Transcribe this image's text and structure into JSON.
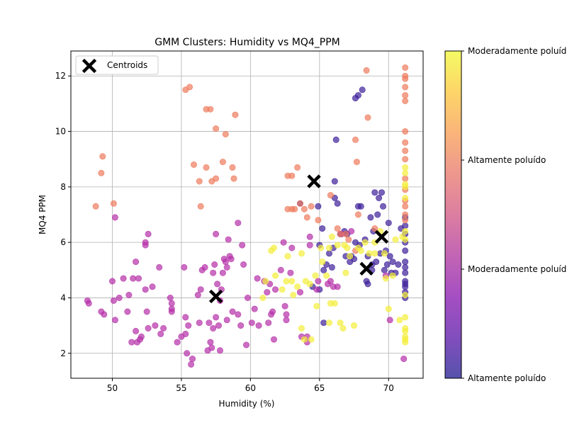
{
  "chart_data": {
    "type": "scatter",
    "title": "GMM Clusters: Humidity vs MQ4_PPM",
    "xlabel": "Humidity (%)",
    "ylabel": "MQ4 PPM",
    "xlim": [
      47,
      72.5
    ],
    "ylim": [
      1.1,
      12.9
    ],
    "xticks": [
      50,
      55,
      60,
      65,
      70
    ],
    "yticks": [
      2,
      4,
      6,
      8,
      10,
      12
    ],
    "grid": true,
    "legend": {
      "position": "top-left",
      "entries": [
        {
          "label": "Centroids",
          "marker": "x-icon"
        }
      ]
    },
    "colorbar": {
      "position": "right",
      "colormap": "plasma",
      "labels": [
        "Altamente poluído",
        "Moderadamente poluído",
        "Altamente poluído",
        "Moderadamente poluído"
      ]
    },
    "marker_alpha": 0.7,
    "centroids": [
      {
        "x": 57.5,
        "y": 4.05
      },
      {
        "x": 64.6,
        "y": 8.2
      },
      {
        "x": 68.4,
        "y": 5.05
      },
      {
        "x": 69.5,
        "y": 6.2
      }
    ],
    "series": [
      {
        "cluster": 0,
        "color": "#3d1f9a",
        "points": [
          [
            71.2,
            4.0
          ],
          [
            71.2,
            4.2
          ],
          [
            71.2,
            4.4
          ],
          [
            71.2,
            4.6
          ],
          [
            71.2,
            4.9
          ],
          [
            71.2,
            5.3
          ],
          [
            71.2,
            5.7
          ],
          [
            71.2,
            6.0
          ],
          [
            71.2,
            6.3
          ],
          [
            71.2,
            6.6
          ],
          [
            71.2,
            6.9
          ],
          [
            71.2,
            5.1
          ],
          [
            71.2,
            4.5
          ],
          [
            70.9,
            6.5
          ],
          [
            70.7,
            5.2
          ],
          [
            70.5,
            4.9
          ],
          [
            70.3,
            5.3
          ],
          [
            70.2,
            4.9
          ],
          [
            70.1,
            5.5
          ],
          [
            70.0,
            6.7
          ],
          [
            69.9,
            5.2
          ],
          [
            69.8,
            5.7
          ],
          [
            69.7,
            5.0
          ],
          [
            69.6,
            7.3
          ],
          [
            69.5,
            7.8
          ],
          [
            69.4,
            5.6
          ],
          [
            69.3,
            7.6
          ],
          [
            69.2,
            7.0
          ],
          [
            69.1,
            5.3
          ],
          [
            69.0,
            7.8
          ],
          [
            68.9,
            6.4
          ],
          [
            68.8,
            5.2
          ],
          [
            68.7,
            6.9
          ],
          [
            68.5,
            5.5
          ],
          [
            68.5,
            4.5
          ],
          [
            68.4,
            4.6
          ],
          [
            68.3,
            6.1
          ],
          [
            68.1,
            11.5
          ],
          [
            67.8,
            11.3
          ],
          [
            67.6,
            11.2
          ],
          [
            68.0,
            7.3
          ],
          [
            67.8,
            7.3
          ],
          [
            67.6,
            6.0
          ],
          [
            67.5,
            5.4
          ],
          [
            67.3,
            5.5
          ],
          [
            67.2,
            5.3
          ],
          [
            67.0,
            6.3
          ],
          [
            66.9,
            5.5
          ],
          [
            66.8,
            6.4
          ],
          [
            66.5,
            6.3
          ],
          [
            66.3,
            7.4
          ],
          [
            66.1,
            7.6
          ],
          [
            66.1,
            8.2
          ],
          [
            66.2,
            9.7
          ],
          [
            66.0,
            5.8
          ],
          [
            65.9,
            5.1
          ],
          [
            65.7,
            5.6
          ],
          [
            65.5,
            5.2
          ],
          [
            65.3,
            5.0
          ],
          [
            65.2,
            6.5
          ],
          [
            65.0,
            5.9
          ],
          [
            65.0,
            4.3
          ],
          [
            64.5,
            4.4
          ],
          [
            64.9,
            7.3
          ],
          [
            63.6,
            7.4
          ],
          [
            65.3,
            3.1
          ],
          [
            67.9,
            5.9
          ],
          [
            68.8,
            5.0
          ]
        ]
      },
      {
        "cluster": 1,
        "color": "#b52fa8",
        "points": [
          [
            48.2,
            3.9
          ],
          [
            48.3,
            3.8
          ],
          [
            49.2,
            3.5
          ],
          [
            49.4,
            3.4
          ],
          [
            50.0,
            4.6
          ],
          [
            50.1,
            3.9
          ],
          [
            50.2,
            3.2
          ],
          [
            50.2,
            6.9
          ],
          [
            50.5,
            4.0
          ],
          [
            50.8,
            4.7
          ],
          [
            51.1,
            3.5
          ],
          [
            51.2,
            4.1
          ],
          [
            51.4,
            2.4
          ],
          [
            51.5,
            4.7
          ],
          [
            51.7,
            5.3
          ],
          [
            51.7,
            2.8
          ],
          [
            51.8,
            2.4
          ],
          [
            51.9,
            4.7
          ],
          [
            52.0,
            2.5
          ],
          [
            52.1,
            2.6
          ],
          [
            52.4,
            4.3
          ],
          [
            52.4,
            5.9
          ],
          [
            52.4,
            6.0
          ],
          [
            52.6,
            6.3
          ],
          [
            52.5,
            3.5
          ],
          [
            52.6,
            2.9
          ],
          [
            52.9,
            4.4
          ],
          [
            53.1,
            3.0
          ],
          [
            53.4,
            5.1
          ],
          [
            53.5,
            2.7
          ],
          [
            53.7,
            2.9
          ],
          [
            54.2,
            4.0
          ],
          [
            54.3,
            3.8
          ],
          [
            54.3,
            3.6
          ],
          [
            54.3,
            3.5
          ],
          [
            54.7,
            2.4
          ],
          [
            55.0,
            2.6
          ],
          [
            55.2,
            5.1
          ],
          [
            55.3,
            3.3
          ],
          [
            55.3,
            2.7
          ],
          [
            55.4,
            2.0
          ],
          [
            55.5,
            3.0
          ],
          [
            55.7,
            1.6
          ],
          [
            55.8,
            1.8
          ],
          [
            56.2,
            4.1
          ],
          [
            56.3,
            3.1
          ],
          [
            56.4,
            4.3
          ],
          [
            56.5,
            5.0
          ],
          [
            56.7,
            5.1
          ],
          [
            56.9,
            2.1
          ],
          [
            57.0,
            3.1
          ],
          [
            57.1,
            2.4
          ],
          [
            57.2,
            2.2
          ],
          [
            57.3,
            2.9
          ],
          [
            57.3,
            4.9
          ],
          [
            57.4,
            5.2
          ],
          [
            57.5,
            6.3
          ],
          [
            57.5,
            3.3
          ],
          [
            57.6,
            4.5
          ],
          [
            57.7,
            3.0
          ],
          [
            57.8,
            2.1
          ],
          [
            57.8,
            3.9
          ],
          [
            57.9,
            4.3
          ],
          [
            58.0,
            4.9
          ],
          [
            58.1,
            5.4
          ],
          [
            58.2,
            5.3
          ],
          [
            58.3,
            5.1
          ],
          [
            58.3,
            3.2
          ],
          [
            58.4,
            6.1
          ],
          [
            58.5,
            5.5
          ],
          [
            58.6,
            5.4
          ],
          [
            58.7,
            3.5
          ],
          [
            59.1,
            6.7
          ],
          [
            59.1,
            3.4
          ],
          [
            59.3,
            3.0
          ],
          [
            59.4,
            5.9
          ],
          [
            59.5,
            5.2
          ],
          [
            59.7,
            2.3
          ],
          [
            59.8,
            4.0
          ],
          [
            60.1,
            3.1
          ],
          [
            60.3,
            3.6
          ],
          [
            60.5,
            4.7
          ],
          [
            60.6,
            3.0
          ],
          [
            61.0,
            4.6
          ],
          [
            61.2,
            4.2
          ],
          [
            61.3,
            3.1
          ],
          [
            61.4,
            4.5
          ],
          [
            61.5,
            3.4
          ],
          [
            61.6,
            3.5
          ],
          [
            61.7,
            2.5
          ],
          [
            61.8,
            4.3
          ],
          [
            62.2,
            5.0
          ],
          [
            62.4,
            6.0
          ],
          [
            62.5,
            3.7
          ],
          [
            62.6,
            3.2
          ],
          [
            62.6,
            3.4
          ],
          [
            62.9,
            4.9
          ],
          [
            63.0,
            5.8
          ],
          [
            63.6,
            4.2
          ],
          [
            63.7,
            2.6
          ],
          [
            64.1,
            2.4
          ],
          [
            64.1,
            2.6
          ],
          [
            64.3,
            5.9
          ],
          [
            64.3,
            6.2
          ],
          [
            64.8,
            4.3
          ],
          [
            64.9,
            4.6
          ],
          [
            65.6,
            4.5
          ],
          [
            65.8,
            4.6
          ],
          [
            66.0,
            4.4
          ],
          [
            66.3,
            4.4
          ],
          [
            66.6,
            6.3
          ],
          [
            67.3,
            6.4
          ],
          [
            69.8,
            4.8
          ],
          [
            70.1,
            3.2
          ],
          [
            71.1,
            1.8
          ]
        ]
      },
      {
        "cluster": 2,
        "color": "#ee7b5c",
        "points": [
          [
            48.8,
            7.3
          ],
          [
            49.2,
            8.5
          ],
          [
            49.3,
            9.1
          ],
          [
            50.1,
            7.4
          ],
          [
            55.3,
            11.5
          ],
          [
            55.6,
            11.6
          ],
          [
            55.9,
            8.8
          ],
          [
            56.3,
            8.2
          ],
          [
            56.4,
            7.3
          ],
          [
            56.8,
            10.8
          ],
          [
            56.8,
            8.7
          ],
          [
            57.1,
            10.8
          ],
          [
            57.2,
            8.2
          ],
          [
            57.5,
            10.1
          ],
          [
            57.5,
            8.3
          ],
          [
            58.0,
            8.9
          ],
          [
            58.2,
            9.9
          ],
          [
            58.7,
            8.7
          ],
          [
            58.8,
            8.3
          ],
          [
            58.9,
            10.6
          ],
          [
            62.7,
            7.2
          ],
          [
            62.7,
            8.4
          ],
          [
            63.0,
            8.4
          ],
          [
            63.0,
            7.2
          ],
          [
            63.2,
            7.2
          ],
          [
            63.4,
            8.7
          ],
          [
            63.6,
            7.4
          ],
          [
            63.9,
            7.2
          ],
          [
            64.1,
            6.9
          ],
          [
            64.4,
            7.3
          ],
          [
            64.9,
            6.8
          ],
          [
            65.8,
            7.7
          ],
          [
            66.3,
            6.5
          ],
          [
            66.5,
            6.3
          ],
          [
            66.9,
            6.3
          ],
          [
            67.1,
            6.1
          ],
          [
            67.6,
            9.7
          ],
          [
            67.7,
            8.9
          ],
          [
            67.8,
            7.0
          ],
          [
            67.6,
            5.7
          ],
          [
            68.4,
            12.2
          ],
          [
            68.5,
            10.5
          ],
          [
            69.0,
            6.5
          ],
          [
            71.2,
            12.3
          ],
          [
            71.2,
            12.0
          ],
          [
            71.2,
            11.9
          ],
          [
            71.2,
            11.6
          ],
          [
            71.2,
            11.3
          ],
          [
            71.2,
            11.1
          ],
          [
            71.2,
            10.0
          ],
          [
            71.2,
            9.6
          ],
          [
            71.2,
            9.3
          ],
          [
            71.2,
            9.0
          ],
          [
            71.2,
            8.3
          ],
          [
            71.2,
            7.9
          ],
          [
            71.2,
            7.5
          ],
          [
            71.2,
            7.3
          ],
          [
            71.2,
            7.0
          ],
          [
            71.2,
            6.8
          ]
        ]
      },
      {
        "cluster": 3,
        "color": "#f4ee3a",
        "points": [
          [
            60.9,
            4.0
          ],
          [
            61.1,
            4.6
          ],
          [
            61.5,
            5.7
          ],
          [
            61.7,
            5.8
          ],
          [
            61.8,
            4.8
          ],
          [
            62.3,
            4.3
          ],
          [
            62.6,
            4.6
          ],
          [
            62.7,
            5.5
          ],
          [
            63.0,
            4.6
          ],
          [
            63.1,
            4.1
          ],
          [
            63.4,
            4.4
          ],
          [
            63.7,
            5.6
          ],
          [
            63.7,
            2.9
          ],
          [
            63.9,
            2.5
          ],
          [
            64.0,
            4.6
          ],
          [
            64.3,
            4.5
          ],
          [
            64.4,
            2.5
          ],
          [
            64.7,
            4.8
          ],
          [
            64.8,
            3.7
          ],
          [
            65.1,
            5.8
          ],
          [
            65.2,
            5.3
          ],
          [
            65.5,
            4.8
          ],
          [
            65.7,
            5.8
          ],
          [
            65.7,
            3.1
          ],
          [
            65.8,
            3.8
          ],
          [
            65.9,
            6.2
          ],
          [
            66.1,
            3.8
          ],
          [
            66.3,
            5.9
          ],
          [
            66.5,
            3.1
          ],
          [
            66.7,
            2.9
          ],
          [
            66.8,
            5.9
          ],
          [
            66.9,
            4.9
          ],
          [
            67.0,
            5.8
          ],
          [
            67.2,
            5.5
          ],
          [
            67.5,
            3.0
          ],
          [
            67.8,
            5.8
          ],
          [
            68.0,
            5.7
          ],
          [
            68.3,
            6.0
          ],
          [
            68.6,
            5.6
          ],
          [
            69.0,
            6.0
          ],
          [
            69.0,
            5.6
          ],
          [
            69.4,
            6.4
          ],
          [
            69.7,
            5.6
          ],
          [
            69.8,
            4.7
          ],
          [
            70.0,
            3.6
          ],
          [
            70.3,
            4.8
          ],
          [
            70.5,
            6.1
          ],
          [
            70.8,
            3.2
          ],
          [
            71.0,
            6.2
          ],
          [
            71.2,
            2.9
          ],
          [
            71.2,
            2.4
          ],
          [
            71.2,
            2.5
          ],
          [
            71.2,
            2.6
          ],
          [
            71.2,
            2.8
          ],
          [
            71.2,
            3.3
          ],
          [
            71.2,
            4.1
          ],
          [
            71.2,
            6.1
          ],
          [
            71.2,
            6.4
          ],
          [
            71.2,
            7.6
          ],
          [
            71.2,
            8.0
          ],
          [
            71.2,
            8.1
          ],
          [
            71.2,
            8.5
          ],
          [
            71.2,
            8.7
          ]
        ]
      }
    ]
  }
}
